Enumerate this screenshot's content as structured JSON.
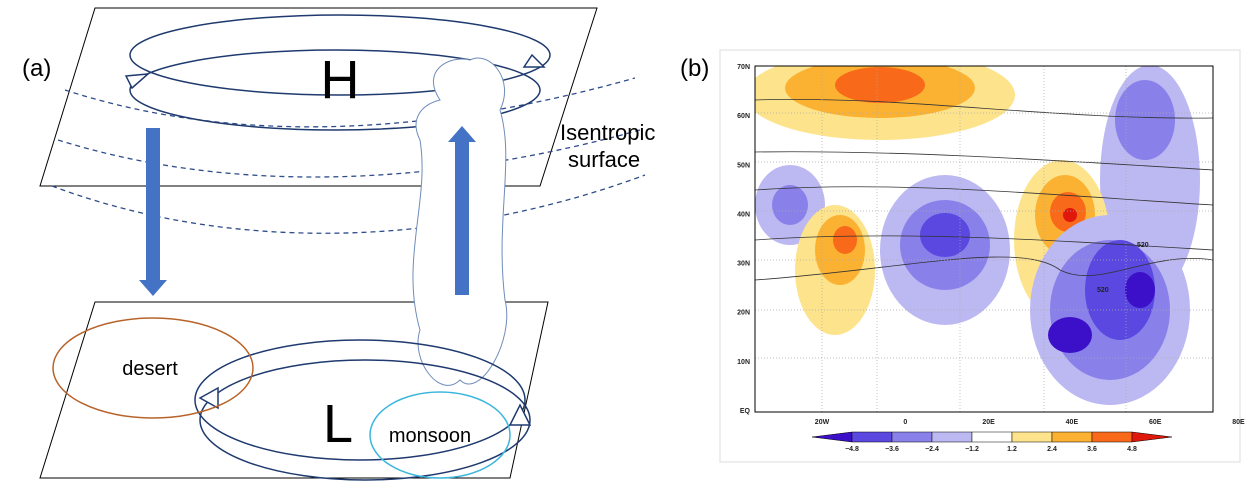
{
  "panel_a": {
    "label": "(a)",
    "high": "H",
    "low": "L",
    "desert": "desert",
    "monsoon": "monsoon",
    "isentropic_1": "Isentropic",
    "isentropic_2": "surface"
  },
  "panel_b": {
    "label": "(b)",
    "lat_labels": [
      "70N",
      "60N",
      "50N",
      "40N",
      "30N",
      "20N",
      "10N",
      "EQ"
    ],
    "lon_labels": [
      "20W",
      "0",
      "20E",
      "40E",
      "60E",
      "80E"
    ],
    "contour_labels": [
      "520",
      "520"
    ],
    "colorbar": {
      "labels": [
        "−4.8",
        "−3.6",
        "−2.4",
        "−1.2",
        "1.2",
        "2.4",
        "3.6",
        "4.8"
      ],
      "colors": [
        "#3b10c8",
        "#5a48e0",
        "#8a80ea",
        "#bcb8f2",
        "#ffffff",
        "#fde48c",
        "#fbb232",
        "#f86a1a",
        "#e0180c"
      ]
    }
  }
}
